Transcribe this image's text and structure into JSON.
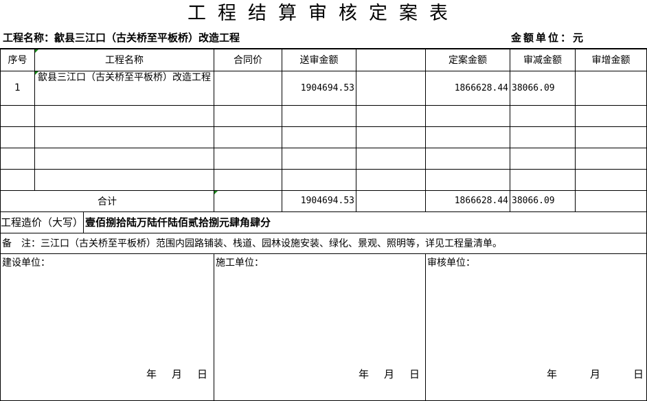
{
  "title": "工程结算审核定案表",
  "project_label": "工程名称：歙县三江口（古关桥至平板桥）改造工程",
  "unit_label": "金额单位：元",
  "headers": [
    "序号",
    "工程名称",
    "合同价",
    "送审金额",
    "",
    "定案金额",
    "审减金额",
    "审增金额"
  ],
  "rows": [
    {
      "no": "1",
      "name": "歙县三江口（古关桥至平板桥）改造工程",
      "contract": "",
      "submitted": "1904694.53",
      "blank": "",
      "approved": "1866628.44",
      "reduced": "38066.09",
      "increased": ""
    }
  ],
  "total": {
    "label": "合计",
    "submitted": "1904694.53",
    "approved": "1866628.44",
    "reduced": "38066.09"
  },
  "capital": {
    "label": "工程造价（大写）",
    "value": "壹佰捌拾陆万陆仟陆佰贰拾捌元肆角肆分"
  },
  "remark": "备　注：三江口（古关桥至平板桥）范围内园路铺装、栈道、园林设施安装、绿化、景观、照明等，详见工程量清单。",
  "signers": [
    {
      "label": "建设单位：",
      "date": [
        "年",
        "月",
        "日"
      ]
    },
    {
      "label": "施工单位：",
      "date": [
        "年",
        "月",
        "日"
      ]
    },
    {
      "label": "审核单位：",
      "date": [
        "年",
        "月",
        "日"
      ]
    }
  ]
}
